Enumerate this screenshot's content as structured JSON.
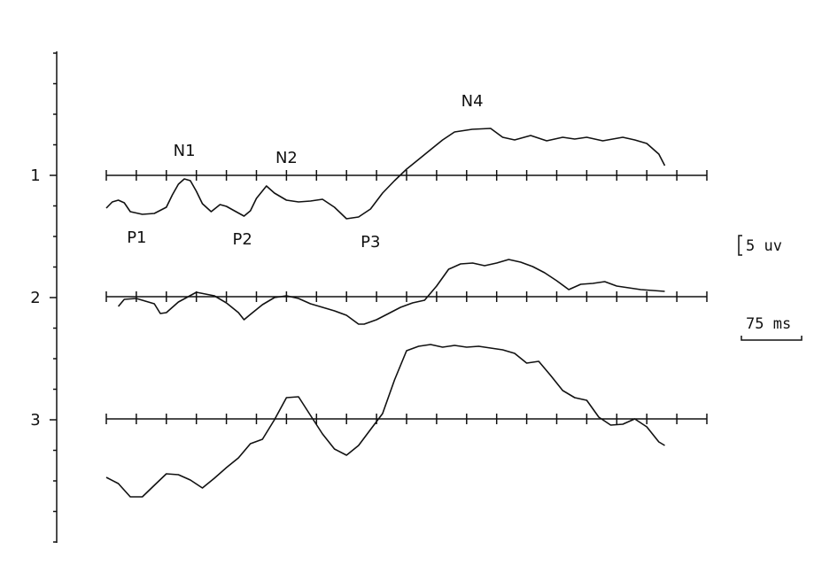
{
  "chart_data": {
    "type": "line",
    "x_unit_ms": 75,
    "x_range_ms": [
      0,
      750
    ],
    "tick_interval_ms": 37.5,
    "y_unit_label": "5 uv",
    "time_scale_label": "75 ms",
    "channels": [
      {
        "label": "1",
        "trace_points": [
          [
            0,
            -1.85
          ],
          [
            7.5,
            -1.5
          ],
          [
            15,
            -1.4
          ],
          [
            22.5,
            -1.55
          ],
          [
            30,
            -2.05
          ],
          [
            45,
            -2.2
          ],
          [
            60,
            -2.15
          ],
          [
            75,
            -1.8
          ],
          [
            82.5,
            -1.1
          ],
          [
            90,
            -0.5
          ],
          [
            97.5,
            -0.2
          ],
          [
            105,
            -0.3
          ],
          [
            112.5,
            -0.9
          ],
          [
            120,
            -1.6
          ],
          [
            131,
            -2.05
          ],
          [
            142,
            -1.65
          ],
          [
            150,
            -1.75
          ],
          [
            160,
            -2.0
          ],
          [
            172,
            -2.3
          ],
          [
            180,
            -2.0
          ],
          [
            187.5,
            -1.3
          ],
          [
            200,
            -0.6
          ],
          [
            210,
            -1.0
          ],
          [
            225,
            -1.4
          ],
          [
            240,
            -1.5
          ],
          [
            255,
            -1.45
          ],
          [
            270,
            -1.35
          ],
          [
            285,
            -1.8
          ],
          [
            300,
            -2.45
          ],
          [
            315,
            -2.35
          ],
          [
            330,
            -1.9
          ],
          [
            345,
            -1.0
          ],
          [
            360,
            -0.3
          ],
          [
            375,
            0.35
          ],
          [
            390,
            0.9
          ],
          [
            405,
            1.45
          ],
          [
            420,
            2.0
          ],
          [
            435,
            2.45
          ],
          [
            457,
            2.6
          ],
          [
            480,
            2.65
          ],
          [
            495,
            2.15
          ],
          [
            510,
            2.0
          ],
          [
            530,
            2.25
          ],
          [
            550,
            1.95
          ],
          [
            570,
            2.15
          ],
          [
            585,
            2.05
          ],
          [
            600,
            2.15
          ],
          [
            620,
            1.95
          ],
          [
            645,
            2.15
          ],
          [
            660,
            2.0
          ],
          [
            675,
            1.8
          ],
          [
            690,
            1.2
          ],
          [
            697.5,
            0.55
          ]
        ],
        "annotations": [
          {
            "text": "N1",
            "x": 97.5,
            "y": -0.2,
            "pos": "above"
          },
          {
            "text": "N2",
            "x": 225,
            "y": -0.6,
            "pos": "above"
          },
          {
            "text": "N4",
            "x": 457,
            "y": 2.6,
            "pos": "above"
          },
          {
            "text": "P1",
            "x": 38,
            "y": -2.2,
            "pos": "below"
          },
          {
            "text": "P2",
            "x": 170,
            "y": -2.3,
            "pos": "below"
          },
          {
            "text": "P3",
            "x": 330,
            "y": -2.45,
            "pos": "below"
          }
        ]
      },
      {
        "label": "2",
        "trace_points": [
          [
            15,
            -0.55
          ],
          [
            22.5,
            -0.15
          ],
          [
            37.5,
            -0.1
          ],
          [
            60,
            -0.4
          ],
          [
            67.5,
            -0.95
          ],
          [
            75,
            -0.9
          ],
          [
            90,
            -0.3
          ],
          [
            112.5,
            0.25
          ],
          [
            135,
            0.05
          ],
          [
            150,
            -0.35
          ],
          [
            165,
            -0.9
          ],
          [
            172,
            -1.3
          ],
          [
            180,
            -1.0
          ],
          [
            195,
            -0.45
          ],
          [
            210,
            -0.05
          ],
          [
            225,
            0.05
          ],
          [
            240,
            -0.1
          ],
          [
            255,
            -0.4
          ],
          [
            270,
            -0.6
          ],
          [
            285,
            -0.8
          ],
          [
            300,
            -1.05
          ],
          [
            315,
            -1.55
          ],
          [
            322,
            -1.55
          ],
          [
            337.5,
            -1.3
          ],
          [
            352.5,
            -0.95
          ],
          [
            367.5,
            -0.6
          ],
          [
            382.5,
            -0.35
          ],
          [
            397.5,
            -0.2
          ],
          [
            412.5,
            0.6
          ],
          [
            427.5,
            1.55
          ],
          [
            442.5,
            1.85
          ],
          [
            457.5,
            1.9
          ],
          [
            472.5,
            1.75
          ],
          [
            487.5,
            1.9
          ],
          [
            502.5,
            2.1
          ],
          [
            517.5,
            1.95
          ],
          [
            532.5,
            1.7
          ],
          [
            547.5,
            1.35
          ],
          [
            562.5,
            0.9
          ],
          [
            577.5,
            0.4
          ],
          [
            592.5,
            0.7
          ],
          [
            607.5,
            0.75
          ],
          [
            622.5,
            0.85
          ],
          [
            637.5,
            0.6
          ],
          [
            652.5,
            0.5
          ],
          [
            667.5,
            0.4
          ],
          [
            682.5,
            0.35
          ],
          [
            697.5,
            0.3
          ]
        ]
      },
      {
        "label": "3",
        "trace_points": [
          [
            0,
            -3.3
          ],
          [
            15,
            -3.65
          ],
          [
            30,
            -4.4
          ],
          [
            45,
            -4.4
          ],
          [
            60,
            -3.75
          ],
          [
            75,
            -3.1
          ],
          [
            90,
            -3.15
          ],
          [
            105,
            -3.45
          ],
          [
            120,
            -3.9
          ],
          [
            135,
            -3.35
          ],
          [
            150,
            -2.75
          ],
          [
            165,
            -2.2
          ],
          [
            180,
            -1.4
          ],
          [
            195,
            -1.15
          ],
          [
            210,
            -0.05
          ],
          [
            225,
            1.2
          ],
          [
            240,
            1.25
          ],
          [
            255,
            0.2
          ],
          [
            270,
            -0.85
          ],
          [
            285,
            -1.7
          ],
          [
            300,
            -2.05
          ],
          [
            315,
            -1.5
          ],
          [
            330,
            -0.6
          ],
          [
            345,
            0.3
          ],
          [
            360,
            2.2
          ],
          [
            375,
            3.85
          ],
          [
            390,
            4.1
          ],
          [
            405,
            4.2
          ],
          [
            420,
            4.05
          ],
          [
            435,
            4.15
          ],
          [
            450,
            4.05
          ],
          [
            465,
            4.1
          ],
          [
            480,
            4.0
          ],
          [
            495,
            3.9
          ],
          [
            510,
            3.7
          ],
          [
            525,
            3.15
          ],
          [
            540,
            3.25
          ],
          [
            555,
            2.45
          ],
          [
            570,
            1.6
          ],
          [
            585,
            1.2
          ],
          [
            600,
            1.05
          ],
          [
            615,
            0.1
          ],
          [
            630,
            -0.35
          ],
          [
            645,
            -0.3
          ],
          [
            660,
            0.0
          ],
          [
            675,
            -0.45
          ],
          [
            690,
            -1.3
          ],
          [
            697.5,
            -1.5
          ]
        ]
      }
    ]
  }
}
